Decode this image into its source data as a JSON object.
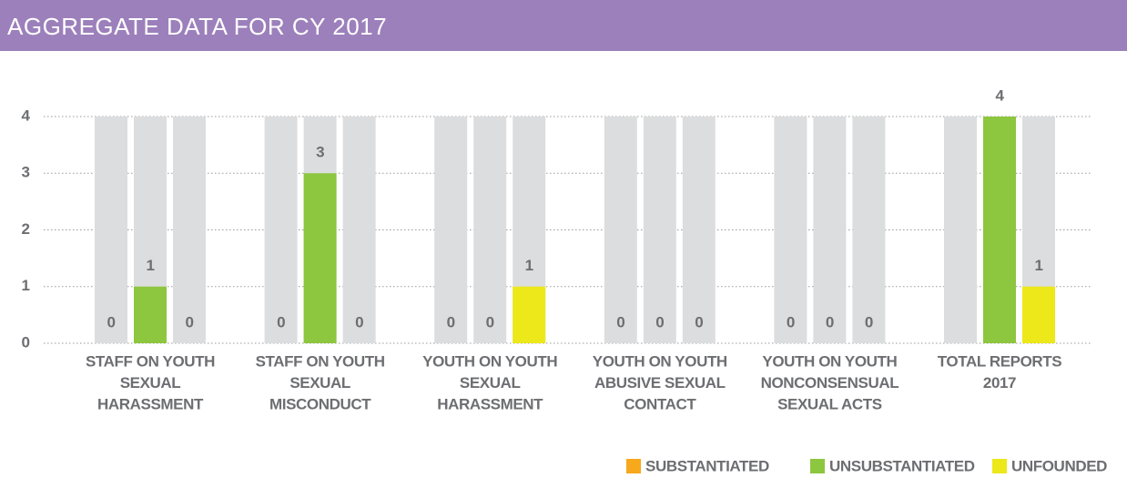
{
  "chart_data": {
    "type": "bar",
    "title": "AGGREGATE DATA FOR CY 2017",
    "categories": [
      [
        "STAFF ON YOUTH",
        "SEXUAL",
        "HARASSMENT"
      ],
      [
        "STAFF ON YOUTH",
        "SEXUAL",
        "MISCONDUCT"
      ],
      [
        "YOUTH ON YOUTH",
        "SEXUAL",
        "HARASSMENT"
      ],
      [
        "YOUTH ON YOUTH",
        "ABUSIVE SEXUAL",
        "CONTACT"
      ],
      [
        "YOUTH ON YOUTH",
        "NONCONSENSUAL",
        "SEXUAL ACTS"
      ],
      [
        "TOTAL REPORTS",
        "2017"
      ]
    ],
    "series": [
      {
        "name": "SUBSTANTIATED",
        "color": "#f7a81b",
        "values": [
          0,
          0,
          0,
          0,
          0,
          0
        ],
        "value_labels": [
          "0",
          "0",
          "0",
          "0",
          "0",
          null
        ]
      },
      {
        "name": "UNSUBSTANTIATED",
        "color": "#8dc63f",
        "values": [
          1,
          3,
          0,
          0,
          0,
          4
        ]
      },
      {
        "name": "UNFOUNDED",
        "color": "#ece81a",
        "values": [
          0,
          0,
          1,
          0,
          0,
          1
        ]
      }
    ],
    "ylim": [
      0,
      4
    ],
    "yticks": [
      0,
      1,
      2,
      3,
      4
    ],
    "grid": true,
    "legend": "bottom-right"
  }
}
